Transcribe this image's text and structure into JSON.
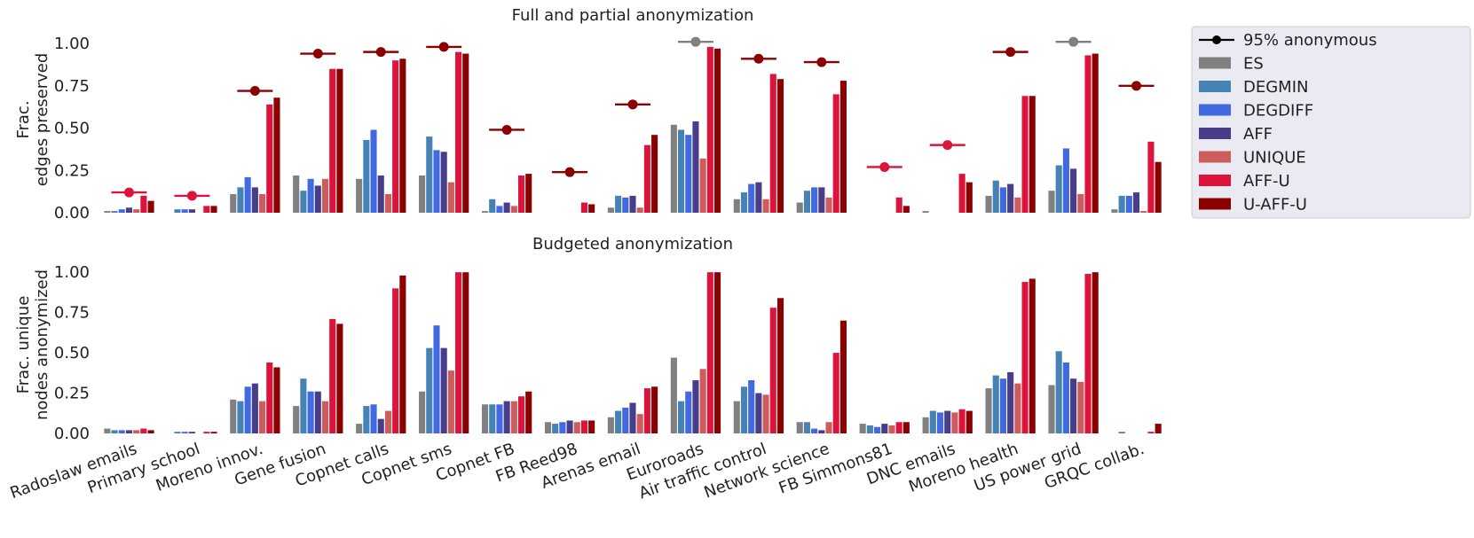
{
  "chart_data": [
    {
      "type": "bar",
      "title": "Full and partial anonymization",
      "ylabel_lines": [
        "Frac.",
        "edges preserved"
      ],
      "ylim": [
        0,
        1.1
      ],
      "yticks": [
        "0.00",
        "0.25",
        "0.50",
        "0.75",
        "1.00"
      ],
      "categories": [
        "Radoslaw emails",
        "Primary school",
        "Moreno innov.",
        "Gene fusion",
        "Copnet calls",
        "Copnet sms",
        "Copnet FB",
        "FB Reed98",
        "Arenas email",
        "Euroroads",
        "Air traffic control",
        "Network science",
        "FB Simmons81",
        "DNC emails",
        "Moreno health",
        "US power grid",
        "GRQC collab."
      ],
      "series": [
        {
          "name": "ES",
          "color": "#808080",
          "values": [
            0.01,
            0.0,
            0.11,
            0.22,
            0.2,
            0.22,
            0.01,
            0.0,
            0.03,
            0.52,
            0.08,
            0.06,
            0.0,
            0.01,
            0.1,
            0.13,
            0.02
          ]
        },
        {
          "name": "DEGMIN",
          "color": "#4682b4",
          "values": [
            0.01,
            0.02,
            0.15,
            0.13,
            0.43,
            0.45,
            0.08,
            0.0,
            0.1,
            0.49,
            0.12,
            0.13,
            0.0,
            0.0,
            0.19,
            0.28,
            0.1
          ]
        },
        {
          "name": "DEGDIFF",
          "color": "#4169e1",
          "values": [
            0.02,
            0.02,
            0.21,
            0.2,
            0.49,
            0.37,
            0.04,
            0.0,
            0.09,
            0.46,
            0.17,
            0.15,
            0.0,
            0.0,
            0.15,
            0.38,
            0.1
          ]
        },
        {
          "name": "AFF",
          "color": "#483d8b",
          "values": [
            0.03,
            0.02,
            0.15,
            0.16,
            0.22,
            0.36,
            0.06,
            0.0,
            0.1,
            0.54,
            0.18,
            0.15,
            0.0,
            0.0,
            0.17,
            0.26,
            0.12
          ]
        },
        {
          "name": "UNIQUE",
          "color": "#cd5c5c",
          "values": [
            0.02,
            0.0,
            0.11,
            0.2,
            0.11,
            0.18,
            0.04,
            0.0,
            0.03,
            0.32,
            0.08,
            0.09,
            0.0,
            0.0,
            0.09,
            0.11,
            0.01
          ]
        },
        {
          "name": "AFF-U",
          "color": "#dc143c",
          "values": [
            0.1,
            0.04,
            0.64,
            0.85,
            0.9,
            0.95,
            0.22,
            0.06,
            0.4,
            0.98,
            0.82,
            0.7,
            0.09,
            0.23,
            0.69,
            0.93,
            0.42
          ]
        },
        {
          "name": "U-AFF-U",
          "color": "#8b0000",
          "values": [
            0.07,
            0.04,
            0.68,
            0.85,
            0.91,
            0.94,
            0.23,
            0.05,
            0.46,
            0.97,
            0.79,
            0.78,
            0.04,
            0.18,
            0.69,
            0.94,
            0.3
          ]
        }
      ],
      "markers_95": [
        {
          "value": 0.12,
          "color": "#dc143c"
        },
        {
          "value": 0.1,
          "color": "#dc143c"
        },
        {
          "value": 0.72,
          "color": "#8b0000"
        },
        {
          "value": 0.94,
          "color": "#8b0000"
        },
        {
          "value": 0.95,
          "color": "#8b0000"
        },
        {
          "value": 0.98,
          "color": "#8b0000"
        },
        {
          "value": 0.49,
          "color": "#8b0000"
        },
        {
          "value": 0.24,
          "color": "#8b0000"
        },
        {
          "value": 0.64,
          "color": "#8b0000"
        },
        {
          "value": 1.01,
          "color": "#808080"
        },
        {
          "value": 0.91,
          "color": "#8b0000"
        },
        {
          "value": 0.89,
          "color": "#8b0000"
        },
        {
          "value": 0.27,
          "color": "#dc143c"
        },
        {
          "value": 0.4,
          "color": "#dc143c"
        },
        {
          "value": 0.95,
          "color": "#8b0000"
        },
        {
          "value": 1.01,
          "color": "#808080"
        },
        {
          "value": 0.75,
          "color": "#8b0000"
        }
      ]
    },
    {
      "type": "bar",
      "title": "Budgeted anonymization",
      "ylabel_lines": [
        "Frac. unique",
        "nodes anonymized"
      ],
      "ylim": [
        0,
        1.1
      ],
      "yticks": [
        "0.00",
        "0.25",
        "0.50",
        "0.75",
        "1.00"
      ],
      "categories": [
        "Radoslaw emails",
        "Primary school",
        "Moreno innov.",
        "Gene fusion",
        "Copnet calls",
        "Copnet sms",
        "Copnet FB",
        "FB Reed98",
        "Arenas email",
        "Euroroads",
        "Air traffic control",
        "Network science",
        "FB Simmons81",
        "DNC emails",
        "Moreno health",
        "US power grid",
        "GRQC collab."
      ],
      "series": [
        {
          "name": "ES",
          "color": "#808080",
          "values": [
            0.03,
            0.0,
            0.21,
            0.17,
            0.06,
            0.26,
            0.18,
            0.07,
            0.1,
            0.47,
            0.2,
            0.07,
            0.06,
            0.1,
            0.28,
            0.3,
            0.0
          ]
        },
        {
          "name": "DEGMIN",
          "color": "#4682b4",
          "values": [
            0.02,
            0.01,
            0.2,
            0.34,
            0.17,
            0.53,
            0.18,
            0.06,
            0.14,
            0.2,
            0.29,
            0.07,
            0.05,
            0.14,
            0.36,
            0.51,
            0.01
          ]
        },
        {
          "name": "DEGDIFF",
          "color": "#4169e1",
          "values": [
            0.02,
            0.01,
            0.29,
            0.26,
            0.18,
            0.67,
            0.18,
            0.07,
            0.16,
            0.26,
            0.33,
            0.03,
            0.04,
            0.13,
            0.34,
            0.44,
            0.0
          ]
        },
        {
          "name": "AFF",
          "color": "#483d8b",
          "values": [
            0.02,
            0.01,
            0.31,
            0.26,
            0.09,
            0.53,
            0.2,
            0.08,
            0.19,
            0.33,
            0.25,
            0.02,
            0.06,
            0.14,
            0.38,
            0.34,
            0.0
          ]
        },
        {
          "name": "UNIQUE",
          "color": "#cd5c5c",
          "values": [
            0.02,
            0.0,
            0.2,
            0.2,
            0.14,
            0.39,
            0.2,
            0.07,
            0.12,
            0.4,
            0.24,
            0.07,
            0.05,
            0.13,
            0.31,
            0.32,
            0.0
          ]
        },
        {
          "name": "AFF-U",
          "color": "#dc143c",
          "values": [
            0.03,
            0.01,
            0.44,
            0.71,
            0.9,
            1.0,
            0.23,
            0.08,
            0.28,
            1.0,
            0.78,
            0.5,
            0.07,
            0.15,
            0.94,
            0.99,
            0.01
          ]
        },
        {
          "name": "U-AFF-U",
          "color": "#8b0000",
          "values": [
            0.02,
            0.01,
            0.41,
            0.68,
            0.98,
            1.0,
            0.26,
            0.08,
            0.29,
            1.0,
            0.84,
            0.7,
            0.07,
            0.14,
            0.96,
            1.0,
            0.06
          ]
        }
      ]
    }
  ],
  "legend": {
    "placement": "right",
    "marker_label": "95% anonymous",
    "marker_color": "#000000",
    "entries": [
      "ES",
      "DEGMIN",
      "DEGDIFF",
      "AFF",
      "UNIQUE",
      "AFF-U",
      "U-AFF-U"
    ]
  }
}
